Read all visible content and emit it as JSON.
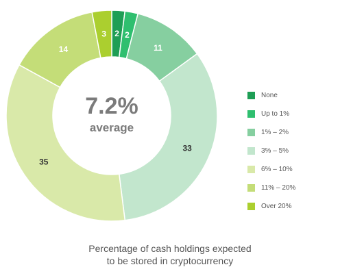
{
  "chart_data": {
    "type": "pie",
    "categories": [
      "None",
      "Up to 1%",
      "1% – 2%",
      "3% – 5%",
      "6% – 10%",
      "11% – 20%",
      "Over 20%"
    ],
    "values": [
      2,
      2,
      11,
      33,
      35,
      14,
      3
    ],
    "data_labels": [
      "2",
      "2",
      "11",
      "33",
      "35",
      "14",
      "3"
    ],
    "center_value": "7.2%",
    "center_label": "average",
    "caption_line1": "Percentage of cash holdings expected",
    "caption_line2": "to be stored in cryptocurrency",
    "legend_position": "right",
    "donut": true,
    "colors": [
      "#1e9e55",
      "#2fbf6f",
      "#86cfa0",
      "#c2e6cd",
      "#d9e9a9",
      "#c4dd78",
      "#abcf2f"
    ],
    "label_colors": [
      "#ffffff",
      "#ffffff",
      "#ffffff",
      "#333333",
      "#333333",
      "#ffffff",
      "#ffffff"
    ]
  }
}
